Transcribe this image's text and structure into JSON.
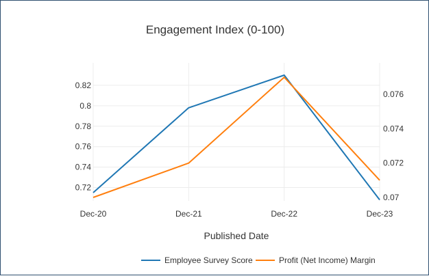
{
  "chart_data": {
    "type": "line",
    "title": "Engagement Index (0-100)",
    "xlabel": "Published Date",
    "categories": [
      "Dec-20",
      "Dec-21",
      "Dec-22",
      "Dec-23"
    ],
    "grid": true,
    "legend_position": "bottom",
    "y_left": {
      "range": [
        0.707,
        0.838
      ],
      "ticks": [
        0.72,
        0.74,
        0.76,
        0.78,
        0.8,
        0.82
      ],
      "tick_labels": [
        "0.72",
        "0.74",
        "0.76",
        "0.78",
        "0.8",
        "0.82"
      ]
    },
    "y_right": {
      "range": [
        0.0698,
        0.0776
      ],
      "ticks": [
        0.07,
        0.072,
        0.074,
        0.076
      ],
      "tick_labels": [
        "0.07",
        "0.072",
        "0.074",
        "0.076"
      ]
    },
    "series": [
      {
        "name": "Employee Survey Score",
        "axis": "left",
        "color": "#1f77b4",
        "values": [
          0.715,
          0.798,
          0.83,
          0.708
        ]
      },
      {
        "name": "Profit (Net Income) Margin",
        "axis": "right",
        "color": "#ff7f0e",
        "values": [
          0.07,
          0.072,
          0.077,
          0.071
        ]
      }
    ]
  }
}
